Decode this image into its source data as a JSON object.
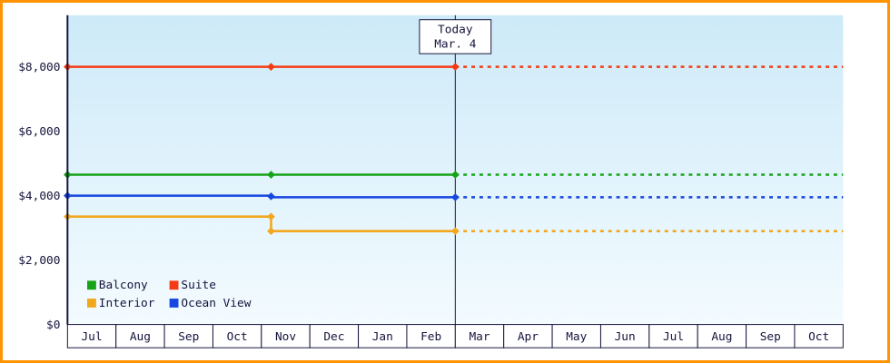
{
  "frame": {
    "border_color": "#ff9400",
    "background": "#ffffff"
  },
  "chart_data": {
    "type": "line",
    "title": "",
    "xlabel": "",
    "ylabel": "",
    "x_tick_labels": [
      "Jul",
      "Aug",
      "Sep",
      "Oct",
      "Nov",
      "Dec",
      "Jan",
      "Feb",
      "Mar",
      "Apr",
      "May",
      "Jun",
      "Jul",
      "Aug",
      "Sep",
      "Oct"
    ],
    "y_ticks": [
      {
        "value": 0,
        "label": "$0"
      },
      {
        "value": 2000,
        "label": "$2,000"
      },
      {
        "value": 4000,
        "label": "$4,000"
      },
      {
        "value": 6000,
        "label": "$6,000"
      },
      {
        "value": 8000,
        "label": "$8,000"
      }
    ],
    "ylim": [
      0,
      9600
    ],
    "xlim_months": [
      0,
      16
    ],
    "grid": false,
    "legend_position": "bottom-left",
    "plot_bg_gradient_top": "#cdeaf8",
    "plot_bg_gradient_bottom": "#f3fbff",
    "axis_color": "#14143c",
    "today_marker": {
      "line1": "Today",
      "line2": "Mar. 4",
      "month_x": 8
    },
    "series": [
      {
        "name": "Suite",
        "color": "#f53b14",
        "points": [
          [
            0,
            7999
          ],
          [
            4.2,
            7999
          ],
          [
            8,
            7999
          ]
        ],
        "marker_points": [
          [
            0,
            7999
          ],
          [
            4.2,
            7999
          ],
          [
            8,
            7999
          ]
        ],
        "forecast_value": 7999
      },
      {
        "name": "Balcony",
        "color": "#17a317",
        "points": [
          [
            0,
            4650
          ],
          [
            4.2,
            4650
          ],
          [
            8,
            4650
          ]
        ],
        "marker_points": [
          [
            0,
            4650
          ],
          [
            4.2,
            4650
          ],
          [
            8,
            4650
          ]
        ],
        "forecast_value": 4650
      },
      {
        "name": "Ocean View",
        "color": "#1747e0",
        "points": [
          [
            0,
            3999
          ],
          [
            4.2,
            3999
          ],
          [
            4.2,
            3949
          ],
          [
            8,
            3949
          ]
        ],
        "marker_points": [
          [
            0,
            3999
          ],
          [
            4.2,
            3979
          ],
          [
            8,
            3949
          ]
        ],
        "forecast_value": 3949
      },
      {
        "name": "Interior",
        "color": "#f2a71c",
        "points": [
          [
            0,
            3349
          ],
          [
            4.2,
            3349
          ],
          [
            4.2,
            2899
          ],
          [
            8,
            2899
          ]
        ],
        "marker_points": [
          [
            0,
            3349
          ],
          [
            4.2,
            3349
          ],
          [
            4.2,
            2899
          ],
          [
            8,
            2899
          ]
        ],
        "forecast_value": 2899
      }
    ],
    "legend": [
      {
        "label": "Balcony",
        "color": "#17a317"
      },
      {
        "label": "Suite",
        "color": "#f53b14"
      },
      {
        "label": "Interior",
        "color": "#f2a71c"
      },
      {
        "label": "Ocean View",
        "color": "#1747e0"
      }
    ]
  }
}
